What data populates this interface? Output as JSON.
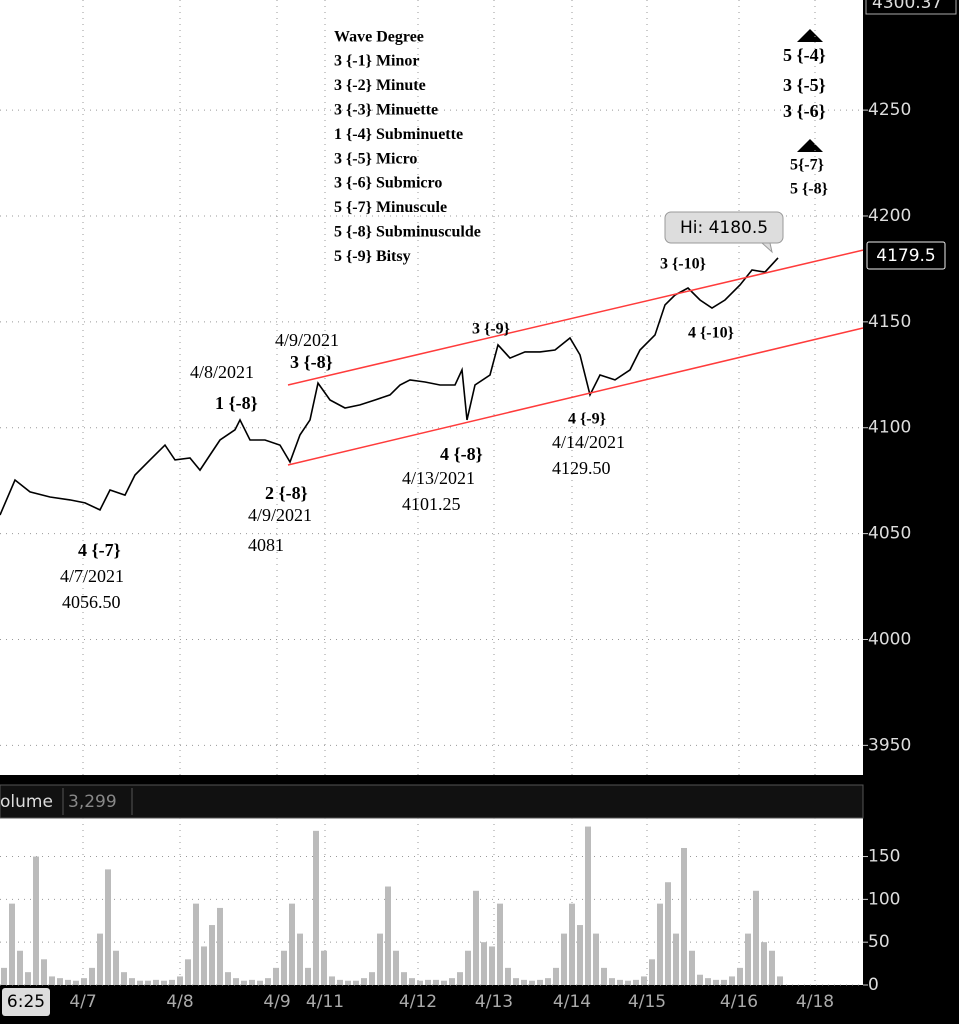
{
  "chart_data": [
    {
      "type": "line",
      "legend_title": "Wave Degree",
      "legend_items": [
        "3 {-1} Minor",
        "3 {-2} Minute",
        "3 {-3} Minuette",
        "1 {-4} Subminuette",
        "3 {-5} Micro",
        "3 {-6} Submicro",
        "5 {-7} Minuscule",
        "5 {-8} Subminusculde",
        "5 {-9} Bitsy"
      ],
      "annotations": [
        "4 {-7}",
        "4/7/2021",
        "4056.50",
        "1 {-8}",
        "4/8/2021",
        "4/9/2021",
        "3 {-8}",
        "2 {-8}",
        "4/9/2021",
        "4081",
        "4 {-8}",
        "4/13/2021",
        "4101.25",
        "3 {-9}",
        "4 {-9}",
        "4/14/2021",
        "4129.50",
        "3 {-10}",
        "4 {-10}",
        "5 {-4}",
        "3 {-5}",
        "3 {-6}",
        "5{-7}",
        "5 {-8}"
      ],
      "high_callout": "Hi: 4180.5",
      "top_label": "4300.37",
      "last_price_label": "4179.5",
      "cursor_label": "6:25",
      "series": [
        {
          "color": "#000000",
          "x": [
            0,
            15,
            30,
            50,
            70,
            85,
            100,
            110,
            125,
            135,
            150,
            165,
            175,
            190,
            200,
            210,
            220,
            235,
            240,
            250,
            265,
            280,
            290,
            300,
            310,
            318,
            330,
            345,
            360,
            375,
            390,
            400,
            410,
            425,
            440,
            455,
            462,
            467,
            475,
            490,
            498,
            510,
            525,
            540,
            555,
            570,
            580,
            590,
            600,
            615,
            630,
            640,
            655,
            665,
            675,
            688,
            700,
            712,
            725,
            740,
            752,
            765,
            778
          ],
          "values": [
            4058.8,
            4075.3,
            4069.7,
            4067.3,
            4065.9,
            4064.5,
            4061.2,
            4070.6,
            4068.2,
            4077.7,
            4084.8,
            4091.8,
            4084.8,
            4085.7,
            4080.0,
            4087.1,
            4094.2,
            4099.0,
            4103.7,
            4094.2,
            4094.2,
            4091.8,
            4083.8,
            4096.6,
            4103.7,
            4121.1,
            4113.1,
            4109.3,
            4110.8,
            4113.1,
            4115.5,
            4120.2,
            4122.6,
            4121.6,
            4120.2,
            4120.2,
            4127.3,
            4103.7,
            4120.2,
            4124.9,
            4139.1,
            4132.9,
            4135.8,
            4135.8,
            4136.7,
            4142.4,
            4134.4,
            4115.5,
            4124.9,
            4122.6,
            4127.3,
            4136.7,
            4143.8,
            4158.0,
            4162.7,
            4166.0,
            4160.3,
            4156.5,
            4160.3,
            4167.4,
            4174.5,
            4173.5,
            4180.2
          ]
        },
        {
          "color": "#ff3b3b",
          "x": [
            288,
            863
          ],
          "values": [
            4120.2,
            4183.9
          ]
        },
        {
          "color": "#ff3b3b",
          "x": [
            288,
            863
          ],
          "values": [
            4082.4,
            4147.1
          ]
        }
      ],
      "xlim": [
        0,
        863
      ],
      "xticks": [
        {
          "value": 83,
          "label": "4/7"
        },
        {
          "value": 180,
          "label": "4/8"
        },
        {
          "value": 277,
          "label": "4/9"
        },
        {
          "value": 325,
          "label": "4/11"
        },
        {
          "value": 418,
          "label": "4/12"
        },
        {
          "value": 494,
          "label": "4/13"
        },
        {
          "value": 572,
          "label": "4/14"
        },
        {
          "value": 647,
          "label": "4/15"
        },
        {
          "value": 739,
          "label": "4/16"
        },
        {
          "value": 815,
          "label": "4/18"
        }
      ],
      "ylim": [
        3936,
        4302
      ],
      "yticks": [
        3950,
        4000,
        4050,
        4100,
        4150,
        4200,
        4250
      ],
      "grid": true
    },
    {
      "type": "bar",
      "title": "olume",
      "last_value": "3,299",
      "color": "#bbbbbb",
      "x": [
        4,
        12,
        20,
        28,
        36,
        44,
        52,
        60,
        68,
        76,
        84,
        92,
        100,
        108,
        116,
        124,
        132,
        140,
        148,
        156,
        164,
        172,
        180,
        188,
        196,
        204,
        212,
        220,
        228,
        236,
        244,
        252,
        260,
        268,
        276,
        284,
        292,
        300,
        308,
        316,
        324,
        332,
        340,
        348,
        356,
        364,
        372,
        380,
        388,
        396,
        404,
        412,
        420,
        428,
        436,
        444,
        452,
        460,
        468,
        476,
        484,
        492,
        500,
        508,
        516,
        524,
        532,
        540,
        548,
        556,
        564,
        572,
        580,
        588,
        596,
        604,
        612,
        620,
        628,
        636,
        644,
        652,
        660,
        668,
        676,
        684,
        692,
        700,
        708,
        716,
        724,
        732,
        740,
        748,
        756,
        764,
        772,
        780
      ],
      "values": [
        20,
        95,
        40,
        15,
        150,
        30,
        10,
        8,
        6,
        5,
        8,
        20,
        60,
        135,
        40,
        15,
        8,
        5,
        5,
        6,
        5,
        6,
        10,
        30,
        95,
        45,
        70,
        90,
        15,
        8,
        5,
        6,
        5,
        8,
        20,
        40,
        95,
        60,
        20,
        180,
        40,
        10,
        6,
        5,
        5,
        8,
        15,
        60,
        115,
        40,
        15,
        8,
        5,
        6,
        6,
        5,
        8,
        15,
        40,
        110,
        50,
        45,
        95,
        20,
        8,
        6,
        5,
        6,
        8,
        20,
        60,
        95,
        70,
        185,
        60,
        20,
        8,
        6,
        5,
        6,
        10,
        30,
        95,
        120,
        60,
        160,
        40,
        12,
        8,
        6,
        6,
        10,
        20,
        60,
        110,
        50,
        40,
        10
      ],
      "xlim": [
        0,
        863
      ],
      "ylim": [
        0,
        195
      ],
      "yticks": [
        0,
        50,
        100,
        150
      ],
      "grid": true
    }
  ]
}
